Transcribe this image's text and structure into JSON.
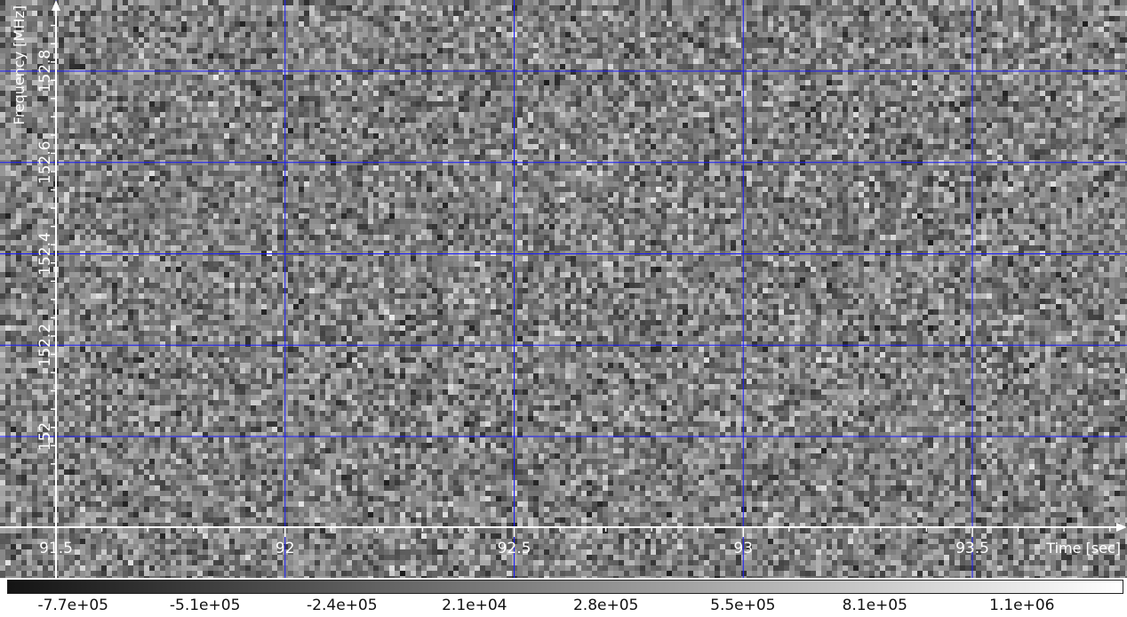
{
  "chart_data": {
    "type": "heatmap",
    "title": "",
    "xlabel": "Time [sec]",
    "ylabel": "Frequency [MHz]",
    "xlim": [
      91.4,
      93.85
    ],
    "ylim": [
      151.92,
      153.0
    ],
    "x_ticks": [
      91.5,
      92,
      92.5,
      93,
      93.5
    ],
    "x_tick_labels": [
      "91.5",
      "92",
      "92.5",
      "93",
      "93.5"
    ],
    "y_ticks": [
      152.0,
      152.2,
      152.4,
      152.6,
      152.8
    ],
    "y_tick_labels": [
      "152",
      "152.2",
      "152.4",
      "152.6",
      "152.8"
    ],
    "grid": true,
    "grid_color": "#1a1aff",
    "colormap": "grayscale",
    "colorbar": {
      "min": -900000.0,
      "max": 1300000.0,
      "ticks": [
        -770000.0,
        -510000.0,
        -240000.0,
        21000.0,
        280000.0,
        550000.0,
        810000.0,
        1100000.0
      ],
      "tick_labels": [
        "-7.7e+05",
        "-5.1e+05",
        "-2.4e+05",
        "2.1e+04",
        "2.8e+05",
        "5.5e+05",
        "8.1e+05",
        "1.1e+06"
      ]
    },
    "values": "random noise field, roughly symmetric around 0"
  }
}
